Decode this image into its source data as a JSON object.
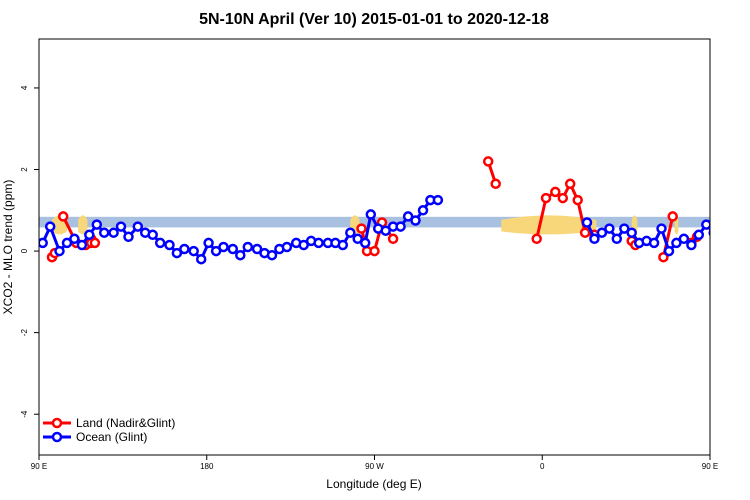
{
  "chart_data": {
    "type": "line",
    "title": "5N-10N April (Ver 10)   2015-01-01 to 2020-12-18",
    "xlabel": "Longitude (deg E)",
    "ylabel": "XCO2 - MLO trend (ppm)",
    "xlim": [
      90,
      450
    ],
    "ylim": [
      -5.0,
      5.2
    ],
    "xticks": [
      {
        "value": 90,
        "label": "90 E"
      },
      {
        "value": 180,
        "label": "180"
      },
      {
        "value": 270,
        "label": "90 W"
      },
      {
        "value": 360,
        "label": "0"
      },
      {
        "value": 450,
        "label": "90 E"
      },
      {
        "value": 540,
        "label": "180"
      }
    ],
    "yticks": [
      -4,
      -2,
      0,
      2,
      4
    ],
    "band": {
      "ymin": 0.58,
      "ymax": 0.84,
      "color": "#a9c1e0"
    },
    "land_shading_color": "#f7d77a",
    "land_shading": [
      {
        "x0": 97,
        "x1": 105
      },
      {
        "x0": 111,
        "x1": 116
      },
      {
        "x0": 257,
        "x1": 262
      },
      {
        "x0": 338,
        "x1": 389
      },
      {
        "x0": 408,
        "x1": 411
      },
      {
        "x0": 431,
        "x1": 433
      }
    ],
    "series": [
      {
        "name": "Land (Nadir&Glint)",
        "color": "#ff0000",
        "segments": [
          [
            [
              97,
              -0.15
            ],
            [
              98.5,
              -0.05
            ]
          ],
          [
            [
              103,
              0.85
            ],
            [
              110,
              0.2
            ],
            [
              115,
              0.15
            ],
            [
              118,
              0.3
            ]
          ],
          [
            [
              118,
              0.2
            ],
            [
              120,
              0.2
            ]
          ],
          [
            [
              263,
              0.55
            ],
            [
              266,
              0.0
            ],
            [
              270,
              0.0
            ],
            [
              274,
              0.7
            ],
            [
              280,
              0.3
            ]
          ],
          [
            [
              331,
              2.2
            ],
            [
              335,
              1.65
            ]
          ],
          [
            [
              357,
              0.3
            ],
            [
              362,
              1.3
            ],
            [
              367,
              1.45
            ],
            [
              371,
              1.3
            ],
            [
              375,
              1.65
            ],
            [
              379,
              1.25
            ],
            [
              383,
              0.45
            ],
            [
              388,
              0.4
            ]
          ],
          [
            [
              408,
              0.25
            ],
            [
              410,
              0.15
            ]
          ],
          [
            [
              425,
              -0.15
            ],
            [
              430,
              0.85
            ]
          ],
          [
            [
              440,
              0.2
            ],
            [
              443,
              0.35
            ]
          ]
        ]
      },
      {
        "name": "Ocean (Glint)",
        "color": "#0000ff",
        "points": [
          [
            92,
            0.2
          ],
          [
            96,
            0.6
          ],
          [
            101,
            0.0
          ],
          [
            105,
            0.2
          ],
          [
            109,
            0.3
          ],
          [
            113,
            0.15
          ],
          [
            117,
            0.4
          ],
          [
            121,
            0.65
          ],
          [
            125,
            0.45
          ],
          [
            130,
            0.45
          ],
          [
            134,
            0.6
          ],
          [
            138,
            0.35
          ],
          [
            143,
            0.6
          ],
          [
            147,
            0.45
          ],
          [
            151,
            0.4
          ],
          [
            155,
            0.2
          ],
          [
            160,
            0.15
          ],
          [
            164,
            -0.05
          ],
          [
            168,
            0.05
          ],
          [
            173,
            0.0
          ],
          [
            177,
            -0.2
          ],
          [
            181,
            0.2
          ],
          [
            185,
            0.0
          ],
          [
            189,
            0.1
          ],
          [
            194,
            0.05
          ],
          [
            198,
            -0.1
          ],
          [
            202,
            0.1
          ],
          [
            207,
            0.05
          ],
          [
            211,
            -0.05
          ],
          [
            215,
            -0.1
          ],
          [
            219,
            0.05
          ],
          [
            223,
            0.1
          ],
          [
            228,
            0.2
          ],
          [
            232,
            0.15
          ],
          [
            236,
            0.25
          ],
          [
            240,
            0.2
          ],
          [
            245,
            0.2
          ],
          [
            249,
            0.2
          ],
          [
            253,
            0.15
          ],
          [
            257,
            0.45
          ],
          [
            261,
            0.3
          ],
          [
            265,
            0.2
          ],
          [
            268,
            0.9
          ],
          [
            272,
            0.55
          ],
          [
            276,
            0.5
          ],
          [
            280,
            0.6
          ],
          [
            284,
            0.6
          ],
          [
            288,
            0.85
          ],
          [
            292,
            0.75
          ],
          [
            296,
            1.0
          ],
          [
            300,
            1.25
          ],
          [
            304,
            1.25
          ]
        ],
        "points2": [
          [
            384,
            0.7
          ],
          [
            388,
            0.3
          ],
          [
            392,
            0.45
          ],
          [
            396,
            0.55
          ],
          [
            400,
            0.3
          ],
          [
            404,
            0.55
          ],
          [
            408,
            0.45
          ],
          [
            412,
            0.2
          ],
          [
            416,
            0.25
          ],
          [
            420,
            0.2
          ],
          [
            424,
            0.55
          ],
          [
            428,
            0.0
          ],
          [
            432,
            0.2
          ],
          [
            436,
            0.3
          ],
          [
            440,
            0.15
          ],
          [
            444,
            0.4
          ],
          [
            448,
            0.65
          ],
          [
            452,
            0.45
          ],
          [
            456,
            0.5
          ],
          [
            460,
            0.55
          ],
          [
            464,
            0.35
          ],
          [
            468,
            0.6
          ],
          [
            472,
            0.45
          ],
          [
            476,
            0.4
          ],
          [
            480,
            0.2
          ],
          [
            484,
            0.15
          ],
          [
            488,
            0.0
          ]
        ]
      }
    ],
    "legend": {
      "placement": "bottom-left",
      "entries": [
        {
          "label": "Land (Nadir&Glint)",
          "color": "#ff0000"
        },
        {
          "label": "Ocean (Glint)",
          "color": "#0000ff"
        }
      ]
    }
  }
}
